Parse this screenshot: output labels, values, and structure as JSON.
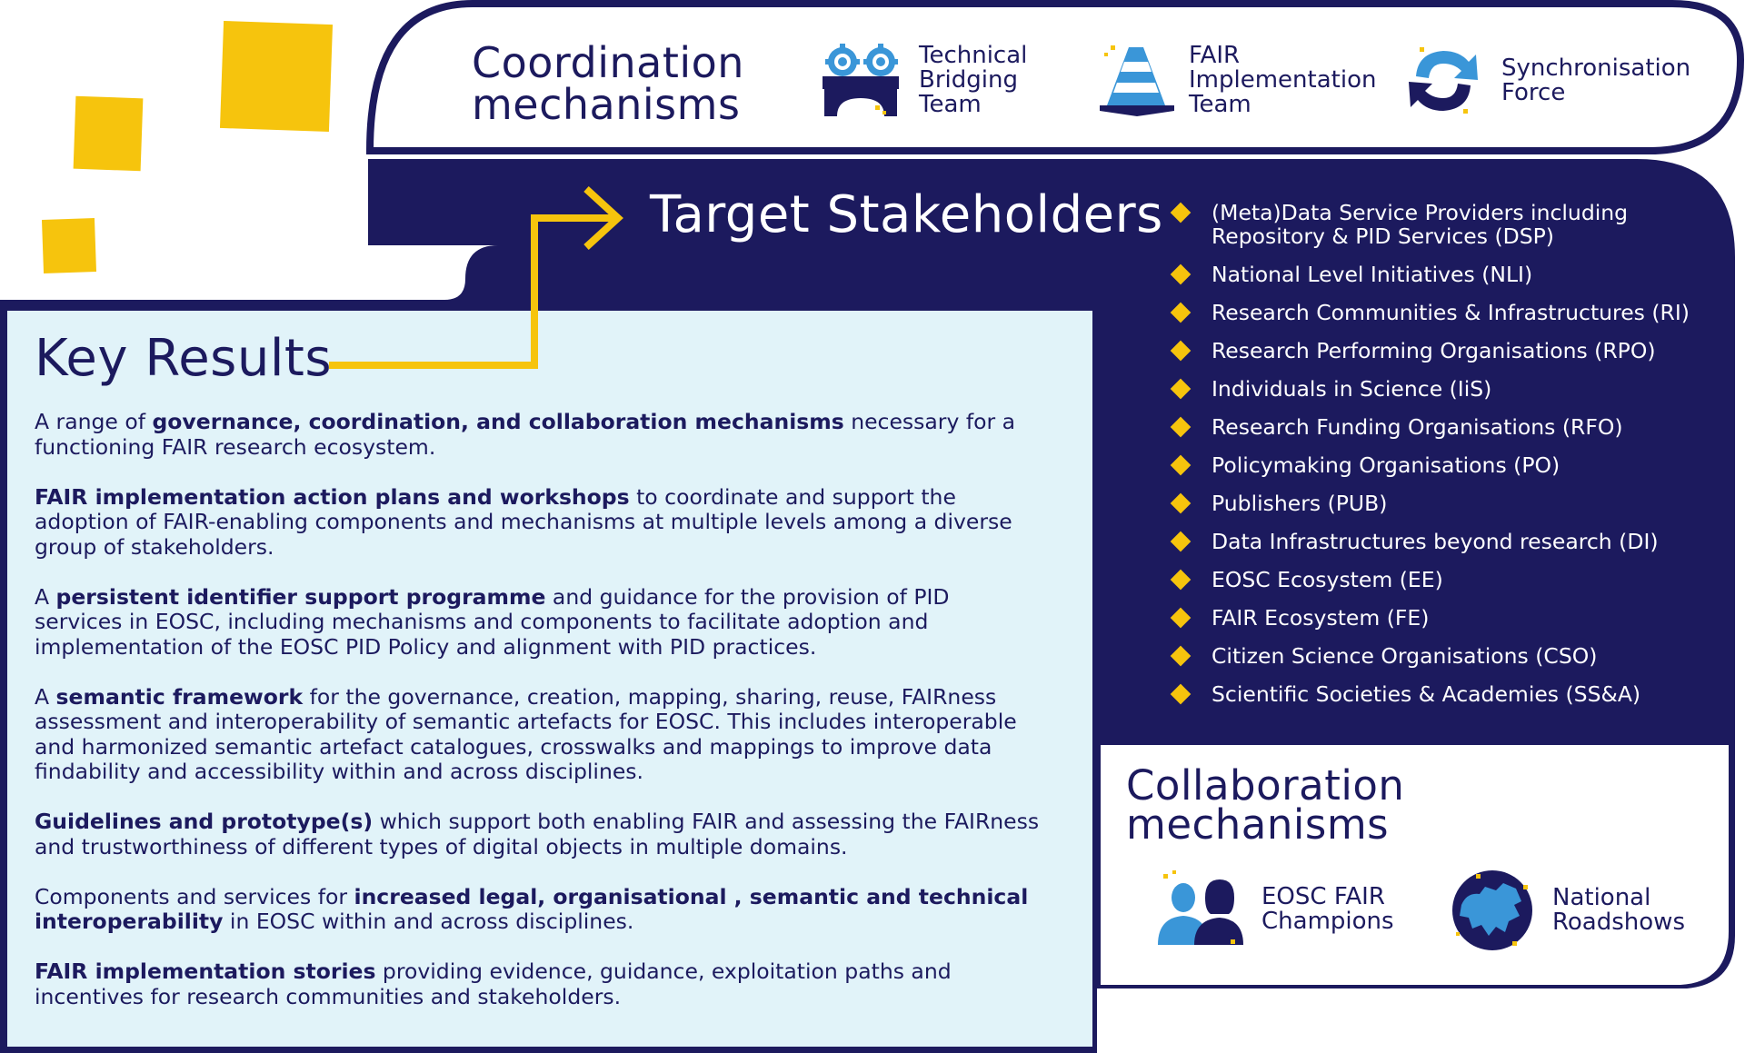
{
  "colors": {
    "navy": "#1c1a5e",
    "yellow": "#f6c40d",
    "light_blue_panel": "#e1f3f9",
    "icon_blue": "#3a96d8"
  },
  "coordination": {
    "title_line1": "Coordination",
    "title_line2": "mechanisms",
    "items": [
      {
        "icon": "bridge-gears-icon",
        "line1": "Technical",
        "line2": "Bridging",
        "line3": "Team"
      },
      {
        "icon": "traffic-cone-icon",
        "line1": "FAIR",
        "line2": "Implementation",
        "line3": "Team"
      },
      {
        "icon": "sync-arrows-icon",
        "line1": "Synchronisation",
        "line2": "Force",
        "line3": ""
      }
    ]
  },
  "target_stakeholders": {
    "title": "Target Stakeholders",
    "items": [
      "(Meta)Data Service Providers including\nRepository & PID Services (DSP)",
      "National Level Initiatives (NLI)",
      "Research Communities & Infrastructures (RI)",
      "Research Performing Organisations (RPO)",
      "Individuals in Science (IiS)",
      "Research Funding Organisations (RFO)",
      "Policymaking Organisations (PO)",
      "Publishers (PUB)",
      "Data Infrastructures beyond research (DI)",
      "EOSC Ecosystem (EE)",
      "FAIR Ecosystem (FE)",
      "Citizen Science Organisations (CSO)",
      "Scientific Societies & Academies (SS&A)"
    ]
  },
  "key_results": {
    "title": "Key Results",
    "paragraphs": [
      {
        "pre": "A  range of ",
        "bold": "governance, coordination, and collaboration mechanisms",
        "post": " necessary for a functioning FAIR research ecosystem."
      },
      {
        "pre": "",
        "bold": "FAIR implementation action plans and workshops",
        "post": " to coordinate and support the adoption of FAIR-enabling components and mechanisms at multiple levels among a diverse group of stakeholders."
      },
      {
        "pre": "A ",
        "bold": "persistent identifier support programme",
        "post": " and guidance for the provision of PID services in EOSC, including mechanisms and components to facilitate adoption and implementation of the EOSC PID Policy and alignment with PID practices."
      },
      {
        "pre": "A ",
        "bold": "semantic framework",
        "post": " for the governance, creation, mapping, sharing, reuse, FAIRness assessment and interoperability of semantic artefacts for EOSC. This includes interoperable and harmonized semantic artefact catalogues, crosswalks and mappings to improve data findability and accessibility within and across disciplines."
      },
      {
        "pre": "",
        "bold": "Guidelines and prototype(s)",
        "post": " which support both enabling FAIR and assessing the FAIRness and trustworthiness of different types of digital objects in multiple domains."
      },
      {
        "pre": "Components and services for ",
        "bold": "increased legal, organisational , semantic and technical interoperability",
        "post": " in EOSC within and across disciplines."
      },
      {
        "pre": "",
        "bold": "FAIR implementation stories",
        "post": " providing evidence, guidance, exploitation paths and incentives for research communities and stakeholders."
      }
    ]
  },
  "collaboration": {
    "title_line1": "Collaboration",
    "title_line2": "mechanisms",
    "items": [
      {
        "icon": "champions-people-icon",
        "line1": "EOSC FAIR",
        "line2": "Champions"
      },
      {
        "icon": "europe-map-icon",
        "line1": "National",
        "line2": "Roadshows"
      }
    ]
  }
}
